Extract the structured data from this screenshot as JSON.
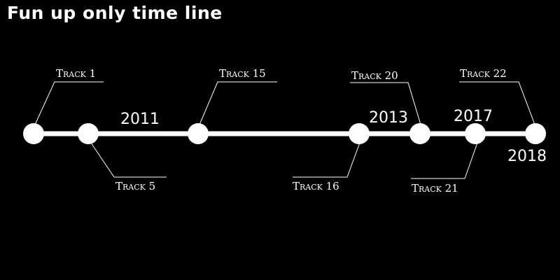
{
  "title": "Fun up only time line",
  "colors": {
    "background": "#000000",
    "foreground": "#ffffff"
  },
  "tracks": [
    {
      "label": "Track 1",
      "side": "above"
    },
    {
      "label": "Track 5",
      "side": "below"
    },
    {
      "label": "Track 15",
      "side": "above"
    },
    {
      "label": "Track 16",
      "side": "below"
    },
    {
      "label": "Track 20",
      "side": "above"
    },
    {
      "label": "Track 21",
      "side": "below"
    },
    {
      "label": "Track 22",
      "side": "above"
    }
  ],
  "years": [
    "2011",
    "2013",
    "2017",
    "2018"
  ]
}
